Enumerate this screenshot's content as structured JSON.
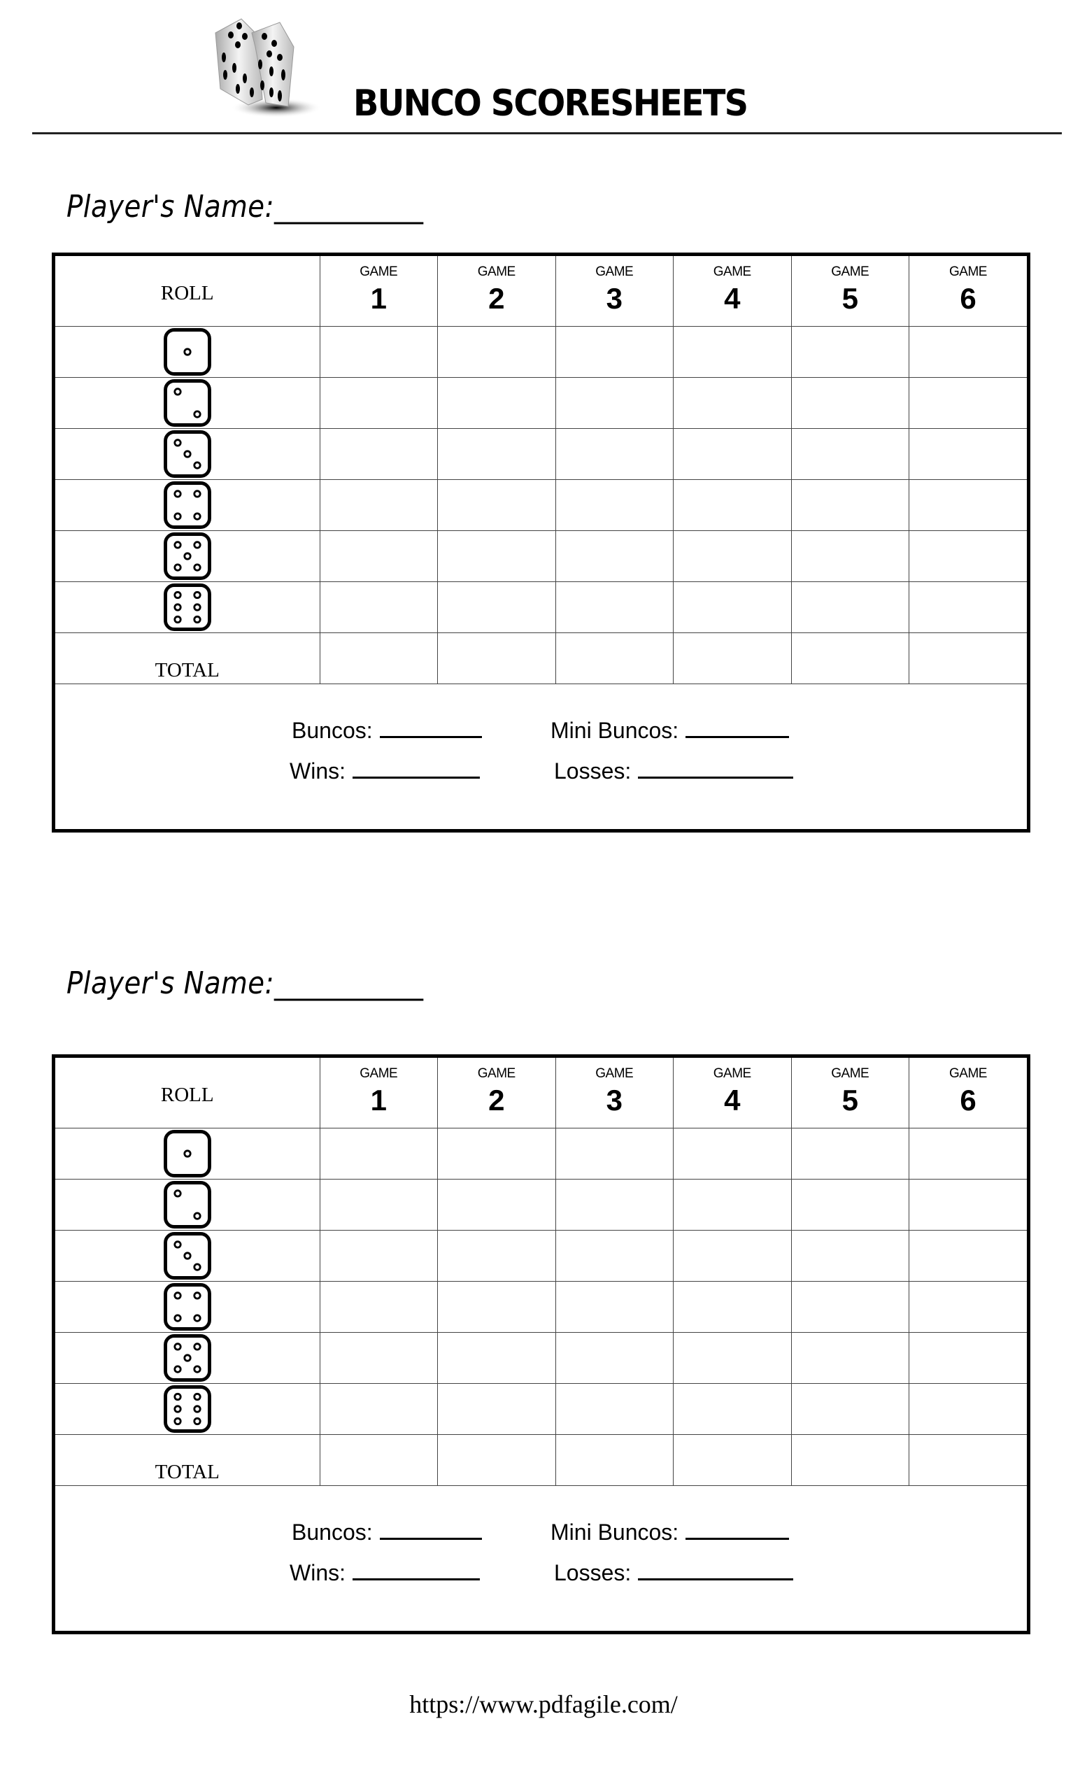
{
  "header": {
    "title": "BUNCO SCORESHEETS",
    "logo": "dice-logo"
  },
  "sheets": [
    {
      "name_label": "Player's Name:",
      "name_value": "____________",
      "roll_header": "ROLL",
      "games": [
        {
          "label": "GAME",
          "number": "1"
        },
        {
          "label": "GAME",
          "number": "2"
        },
        {
          "label": "GAME",
          "number": "3"
        },
        {
          "label": "GAME",
          "number": "4"
        },
        {
          "label": "GAME",
          "number": "5"
        },
        {
          "label": "GAME",
          "number": "6"
        }
      ],
      "rolls": [
        1,
        2,
        3,
        4,
        5,
        6
      ],
      "total_label": "TOTAL",
      "summary": {
        "buncos": "Buncos:",
        "mini_buncos": "Mini Buncos:",
        "wins": "Wins:",
        "losses": "Losses:"
      }
    },
    {
      "name_label": "Player's Name:",
      "name_value": "____________",
      "roll_header": "ROLL",
      "games": [
        {
          "label": "GAME",
          "number": "1"
        },
        {
          "label": "GAME",
          "number": "2"
        },
        {
          "label": "GAME",
          "number": "3"
        },
        {
          "label": "GAME",
          "number": "4"
        },
        {
          "label": "GAME",
          "number": "5"
        },
        {
          "label": "GAME",
          "number": "6"
        }
      ],
      "rolls": [
        1,
        2,
        3,
        4,
        5,
        6
      ],
      "total_label": "TOTAL",
      "summary": {
        "buncos": "Buncos:",
        "mini_buncos": "Mini Buncos:",
        "wins": "Wins:",
        "losses": "Losses:"
      }
    }
  ],
  "footer": {
    "url": "https://www.pdfagile.com/"
  }
}
